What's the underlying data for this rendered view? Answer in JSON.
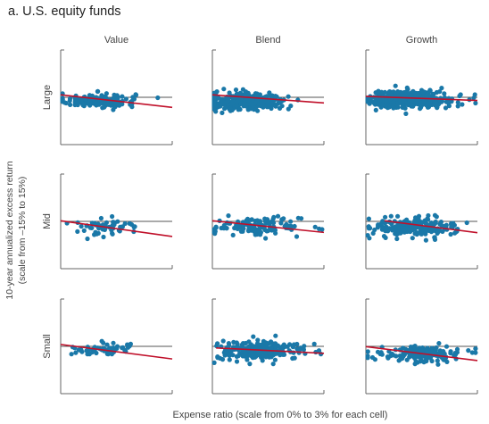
{
  "page": {
    "title": "a. U.S. equity funds"
  },
  "chart_data": {
    "type": "scatter",
    "title": "a. U.S. equity funds",
    "xlabel": "Expense ratio (scale from 0% to 3% for each cell)",
    "ylabel_line1": "10-year annualized excess return",
    "ylabel_line2": "(scale from –15% to 15%)",
    "columns": [
      "Value",
      "Blend",
      "Growth"
    ],
    "rows": [
      "Large",
      "Mid",
      "Small"
    ],
    "xlim": [
      0,
      3
    ],
    "ylim": [
      -15,
      15
    ],
    "zero_line": 0,
    "colors": {
      "point": "#1a78a8",
      "trend": "#c0102a",
      "zero": "#555555",
      "frame": "#666666"
    },
    "cells": [
      {
        "row": "Large",
        "column": "Value",
        "x_center": 1.0,
        "x_spread": 0.5,
        "y_center": -1.0,
        "y_spread": 1.6,
        "n": 160,
        "trend": {
          "x": [
            0.0,
            3.0
          ],
          "y": [
            0.8,
            -3.2
          ]
        }
      },
      {
        "row": "Large",
        "column": "Blend",
        "x_center": 0.9,
        "x_spread": 0.55,
        "y_center": -1.3,
        "y_spread": 2.0,
        "n": 330,
        "trend": {
          "x": [
            0.0,
            3.0
          ],
          "y": [
            0.8,
            -1.8
          ]
        }
      },
      {
        "row": "Large",
        "column": "Growth",
        "x_center": 1.2,
        "x_spread": 0.6,
        "y_center": -0.6,
        "y_spread": 2.0,
        "n": 330,
        "trend": {
          "x": [
            0.0,
            3.0
          ],
          "y": [
            0.3,
            -1.0
          ]
        }
      },
      {
        "row": "Mid",
        "column": "Value",
        "x_center": 1.2,
        "x_spread": 0.5,
        "y_center": -2.0,
        "y_spread": 1.8,
        "n": 60,
        "trend": {
          "x": [
            0.0,
            3.0
          ],
          "y": [
            0.2,
            -4.8
          ]
        }
      },
      {
        "row": "Mid",
        "column": "Blend",
        "x_center": 1.2,
        "x_spread": 0.6,
        "y_center": -1.6,
        "y_spread": 2.0,
        "n": 120,
        "trend": {
          "x": [
            0.0,
            3.0
          ],
          "y": [
            0.2,
            -3.5
          ]
        }
      },
      {
        "row": "Mid",
        "column": "Growth",
        "x_center": 1.3,
        "x_spread": 0.55,
        "y_center": -1.8,
        "y_spread": 2.2,
        "n": 200,
        "trend": {
          "x": [
            0.5,
            3.0
          ],
          "y": [
            0.2,
            -3.6
          ]
        }
      },
      {
        "row": "Small",
        "column": "Value",
        "x_center": 1.2,
        "x_spread": 0.45,
        "y_center": -0.9,
        "y_spread": 1.4,
        "n": 55,
        "trend": {
          "x": [
            0.0,
            3.0
          ],
          "y": [
            0.6,
            -4.0
          ]
        }
      },
      {
        "row": "Small",
        "column": "Blend",
        "x_center": 1.3,
        "x_spread": 0.6,
        "y_center": -1.3,
        "y_spread": 2.0,
        "n": 240,
        "trend": {
          "x": [
            0.1,
            3.0
          ],
          "y": [
            -0.5,
            -2.2
          ]
        }
      },
      {
        "row": "Small",
        "column": "Growth",
        "x_center": 1.5,
        "x_spread": 0.55,
        "y_center": -2.5,
        "y_spread": 1.8,
        "n": 150,
        "trend": {
          "x": [
            0.0,
            3.0
          ],
          "y": [
            -0.1,
            -4.5
          ]
        }
      }
    ]
  }
}
